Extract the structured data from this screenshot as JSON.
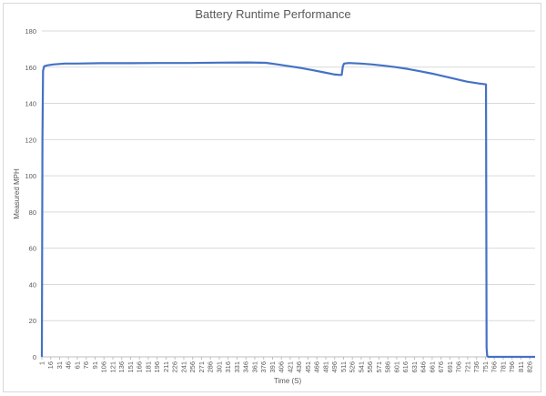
{
  "chart_data": {
    "type": "line",
    "title": "Battery Runtime Performance",
    "xlabel": "Time (S)",
    "ylabel": "Measured MPH",
    "ylim": [
      0,
      180
    ],
    "yticks": [
      0,
      20,
      40,
      60,
      80,
      100,
      120,
      140,
      160,
      180
    ],
    "xlim": [
      1,
      835
    ],
    "xticks": [
      1,
      16,
      31,
      46,
      61,
      76,
      91,
      106,
      121,
      136,
      151,
      166,
      181,
      196,
      211,
      226,
      241,
      256,
      271,
      286,
      301,
      316,
      331,
      346,
      361,
      376,
      391,
      406,
      421,
      436,
      451,
      466,
      481,
      496,
      511,
      526,
      541,
      556,
      571,
      586,
      601,
      616,
      631,
      646,
      661,
      676,
      691,
      706,
      721,
      736,
      751,
      766,
      781,
      796,
      811,
      826
    ],
    "grid": true,
    "legend": "none",
    "color": "#4472c4",
    "series": [
      {
        "x": [
          1,
          2,
          3,
          5,
          10,
          20,
          40,
          60,
          100,
          150,
          200,
          250,
          300,
          350,
          380,
          400,
          420,
          440,
          460,
          480,
          495,
          505,
          508,
          510,
          512,
          520,
          540,
          560,
          580,
          600,
          620,
          640,
          660,
          680,
          700,
          720,
          740,
          752,
          753,
          754,
          756,
          780,
          800,
          826,
          835
        ],
        "y": [
          0,
          120,
          158,
          160.5,
          161,
          161.5,
          162,
          162,
          162.2,
          162.2,
          162.3,
          162.3,
          162.5,
          162.6,
          162.4,
          161.5,
          160.5,
          159.5,
          158.3,
          157,
          156,
          155.7,
          155.7,
          160.5,
          162,
          162.3,
          162,
          161.5,
          160.8,
          160,
          159,
          157.8,
          156.5,
          155,
          153.5,
          152,
          151,
          150.5,
          5,
          0.5,
          0,
          0,
          0,
          0,
          0
        ]
      }
    ]
  }
}
